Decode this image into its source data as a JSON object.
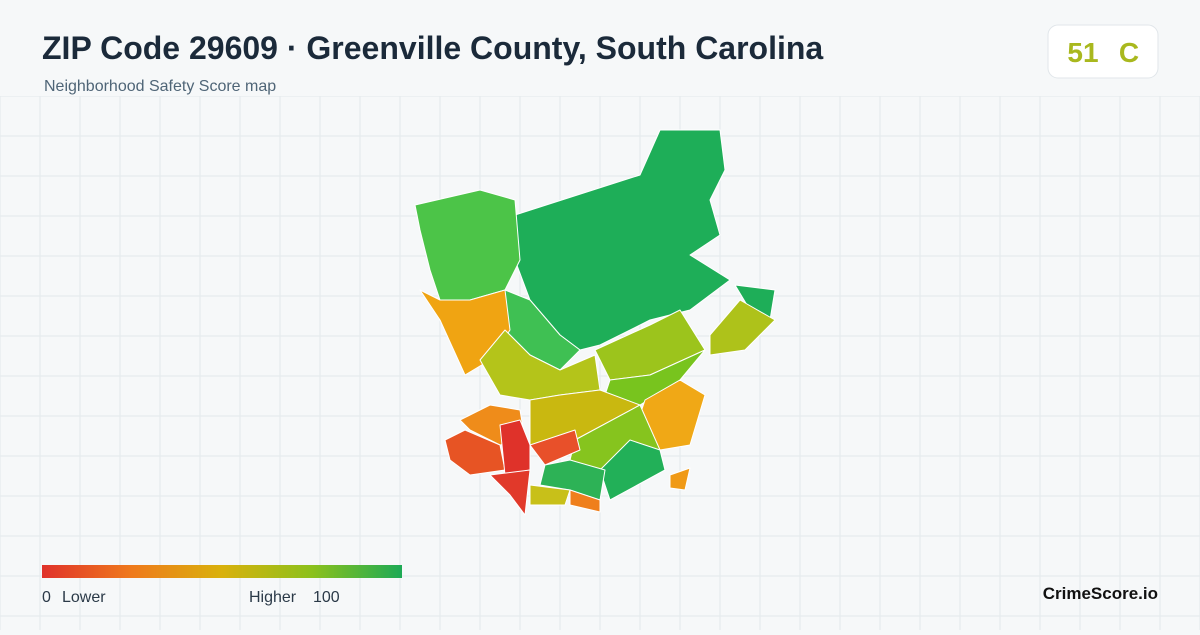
{
  "header": {
    "title": "ZIP Code 29609 · Greenville County, South Carolina",
    "subtitle": "Neighborhood Safety Score map"
  },
  "score": {
    "value": 51,
    "grade": "C"
  },
  "legend": {
    "min": 0,
    "min_label": "Lower",
    "max_label": "Higher",
    "max": 100
  },
  "brand": "CrimeScore.io"
}
